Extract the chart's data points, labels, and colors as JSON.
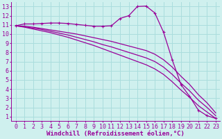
{
  "background_color": "#cff0ee",
  "grid_color": "#aadddd",
  "line_color": "#990099",
  "xlim": [
    -0.5,
    23.5
  ],
  "ylim": [
    0.5,
    13.5
  ],
  "xlabel": "Windchill (Refroidissement éolien,°C)",
  "xlabel_fontsize": 6.5,
  "xticks": [
    0,
    1,
    2,
    3,
    4,
    5,
    6,
    7,
    8,
    9,
    10,
    11,
    12,
    13,
    14,
    15,
    16,
    17,
    18,
    19,
    20,
    21,
    22,
    23
  ],
  "yticks": [
    1,
    2,
    3,
    4,
    5,
    6,
    7,
    8,
    9,
    10,
    11,
    12,
    13
  ],
  "tick_fontsize": 6,
  "series": [
    {
      "x": [
        0,
        1,
        2,
        3,
        4,
        5,
        6,
        7,
        8,
        9,
        10,
        11,
        12,
        13,
        14,
        15,
        16,
        17,
        18,
        19,
        20,
        21,
        22,
        23
      ],
      "y": [
        10.9,
        11.1,
        11.1,
        11.15,
        11.2,
        11.2,
        11.15,
        11.05,
        10.95,
        10.85,
        10.85,
        10.9,
        11.7,
        12.0,
        13.0,
        13.05,
        12.3,
        10.2,
        7.2,
        4.5,
        3.2,
        1.7,
        1.1,
        0.8
      ],
      "marker": true
    },
    {
      "x": [
        0,
        1,
        2,
        3,
        4,
        5,
        6,
        7,
        8,
        9,
        10,
        11,
        12,
        13,
        14,
        15,
        16,
        17,
        18,
        19,
        20,
        21,
        22,
        23
      ],
      "y": [
        10.9,
        10.85,
        10.75,
        10.6,
        10.45,
        10.3,
        10.15,
        10.0,
        9.8,
        9.6,
        9.4,
        9.2,
        8.95,
        8.7,
        8.45,
        8.2,
        7.8,
        7.2,
        6.4,
        5.4,
        4.5,
        3.4,
        2.5,
        1.4
      ],
      "marker": false
    },
    {
      "x": [
        0,
        1,
        2,
        3,
        4,
        5,
        6,
        7,
        8,
        9,
        10,
        11,
        12,
        13,
        14,
        15,
        16,
        17,
        18,
        19,
        20,
        21,
        22,
        23
      ],
      "y": [
        10.9,
        10.8,
        10.65,
        10.5,
        10.3,
        10.1,
        9.9,
        9.65,
        9.4,
        9.15,
        8.85,
        8.6,
        8.3,
        8.0,
        7.7,
        7.4,
        7.0,
        6.4,
        5.6,
        4.65,
        3.8,
        2.8,
        2.0,
        1.1
      ],
      "marker": false
    },
    {
      "x": [
        0,
        1,
        2,
        3,
        4,
        5,
        6,
        7,
        8,
        9,
        10,
        11,
        12,
        13,
        14,
        15,
        16,
        17,
        18,
        19,
        20,
        21,
        22,
        23
      ],
      "y": [
        10.9,
        10.75,
        10.55,
        10.35,
        10.15,
        9.9,
        9.65,
        9.35,
        9.05,
        8.75,
        8.4,
        8.05,
        7.7,
        7.35,
        7.0,
        6.65,
        6.2,
        5.6,
        4.8,
        3.9,
        3.1,
        2.2,
        1.5,
        0.8
      ],
      "marker": false
    }
  ]
}
